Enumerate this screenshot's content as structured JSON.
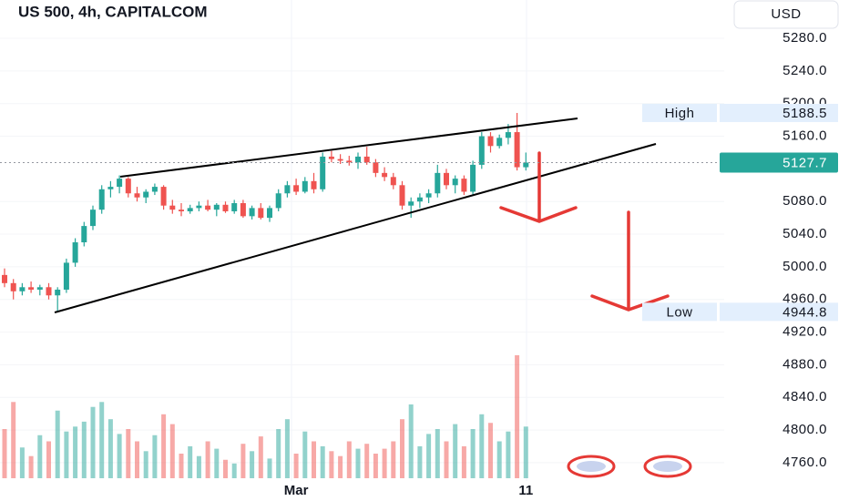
{
  "chart_data": {
    "type": "candlestick",
    "title": "US 500, 4h, CAPITALCOM",
    "currency": "USD",
    "up_color": "#26a69a",
    "down_color": "#ef5350",
    "ylim": [
      4737.6,
      5326.9
    ],
    "yticks": [
      {
        "value": 5280,
        "label": "5280.0"
      },
      {
        "value": 5240,
        "label": "5240.0"
      },
      {
        "value": 5200,
        "label": "5200.0"
      },
      {
        "value": 5160,
        "label": "5160.0"
      },
      {
        "value": 5080,
        "label": "5080.0"
      },
      {
        "value": 5040,
        "label": "5040.0"
      },
      {
        "value": 5000,
        "label": "5000.0"
      },
      {
        "value": 4960,
        "label": "4960.0"
      },
      {
        "value": 4920,
        "label": "4920.0"
      },
      {
        "value": 4880,
        "label": "4880.0"
      },
      {
        "value": 4840,
        "label": "4840.0"
      },
      {
        "value": 4800,
        "label": "4800.0"
      },
      {
        "value": 4760,
        "label": "4760.0"
      }
    ],
    "grid": true,
    "high": {
      "label": "High",
      "value": 5188.5
    },
    "low": {
      "label": "Low",
      "value": 4944.8
    },
    "last_price": 5127.7,
    "categories": [
      null,
      null,
      null,
      null,
      null,
      null,
      null,
      null,
      null,
      null,
      null,
      null,
      null,
      null,
      null,
      null,
      null,
      null,
      null,
      null,
      null,
      null,
      null,
      null,
      null,
      null,
      null,
      null,
      null,
      null,
      null,
      null,
      null,
      "Mar",
      null,
      null,
      null,
      null,
      null,
      null,
      null,
      null,
      null,
      null,
      null,
      null,
      null,
      null,
      null,
      null,
      null,
      null,
      null,
      null,
      null,
      null,
      null,
      null,
      null,
      "11"
    ],
    "ohlc": [
      [
        4990,
        4998,
        4975,
        4980
      ],
      [
        4980,
        4985,
        4960,
        4970
      ],
      [
        4970,
        4980,
        4965,
        4975
      ],
      [
        4975,
        4982,
        4968,
        4972
      ],
      [
        4972,
        4978,
        4965,
        4975
      ],
      [
        4975,
        4980,
        4960,
        4965
      ],
      [
        4965,
        4975,
        4944.8,
        4972
      ],
      [
        4972,
        5010,
        4968,
        5005
      ],
      [
        5005,
        5035,
        5000,
        5030
      ],
      [
        5030,
        5055,
        5025,
        5050
      ],
      [
        5050,
        5075,
        5045,
        5070
      ],
      [
        5070,
        5100,
        5065,
        5095
      ],
      [
        5095,
        5105,
        5085,
        5098
      ],
      [
        5098,
        5112,
        5090,
        5108
      ],
      [
        5108,
        5110,
        5085,
        5090
      ],
      [
        5090,
        5098,
        5080,
        5085
      ],
      [
        5085,
        5095,
        5078,
        5092
      ],
      [
        5092,
        5102,
        5088,
        5098
      ],
      [
        5098,
        5100,
        5070,
        5075
      ],
      [
        5075,
        5082,
        5065,
        5070
      ],
      [
        5070,
        5078,
        5062,
        5068
      ],
      [
        5068,
        5076,
        5065,
        5072
      ],
      [
        5072,
        5080,
        5068,
        5075
      ],
      [
        5075,
        5082,
        5068,
        5070
      ],
      [
        5070,
        5078,
        5062,
        5076
      ],
      [
        5076,
        5080,
        5066,
        5068
      ],
      [
        5068,
        5082,
        5065,
        5078
      ],
      [
        5078,
        5082,
        5060,
        5062
      ],
      [
        5062,
        5075,
        5058,
        5072
      ],
      [
        5072,
        5078,
        5058,
        5060
      ],
      [
        5060,
        5075,
        5055,
        5072
      ],
      [
        5072,
        5095,
        5068,
        5090
      ],
      [
        5090,
        5105,
        5085,
        5100
      ],
      [
        5100,
        5108,
        5088,
        5092
      ],
      [
        5092,
        5110,
        5090,
        5105
      ],
      [
        5105,
        5115,
        5090,
        5095
      ],
      [
        5095,
        5140,
        5092,
        5135
      ],
      [
        5135,
        5142,
        5128,
        5132
      ],
      [
        5132,
        5138,
        5126,
        5130
      ],
      [
        5130,
        5136,
        5124,
        5128
      ],
      [
        5128,
        5140,
        5120,
        5135
      ],
      [
        5135,
        5147,
        5125,
        5128
      ],
      [
        5128,
        5132,
        5110,
        5115
      ],
      [
        5115,
        5122,
        5105,
        5110
      ],
      [
        5110,
        5115,
        5095,
        5100
      ],
      [
        5100,
        5105,
        5070,
        5075
      ],
      [
        5075,
        5085,
        5060,
        5080
      ],
      [
        5080,
        5090,
        5072,
        5085
      ],
      [
        5085,
        5095,
        5078,
        5090
      ],
      [
        5090,
        5125,
        5085,
        5115
      ],
      [
        5115,
        5120,
        5095,
        5100
      ],
      [
        5100,
        5112,
        5090,
        5108
      ],
      [
        5108,
        5112,
        5088,
        5092
      ],
      [
        5092,
        5130,
        5088,
        5125
      ],
      [
        5125,
        5165,
        5120,
        5160
      ],
      [
        5160,
        5165,
        5140,
        5148
      ],
      [
        5148,
        5162,
        5145,
        5158
      ],
      [
        5158,
        5175,
        5150,
        5165
      ],
      [
        5165,
        5188.5,
        5118,
        5122
      ],
      [
        5122,
        5140,
        5118,
        5127.7
      ]
    ],
    "volume": [
      40,
      62,
      25,
      18,
      35,
      30,
      55,
      38,
      42,
      46,
      58,
      62,
      48,
      36,
      40,
      30,
      22,
      35,
      52,
      44,
      20,
      26,
      18,
      30,
      24,
      15,
      12,
      28,
      22,
      34,
      16,
      40,
      48,
      20,
      38,
      30,
      26,
      22,
      18,
      30,
      24,
      28,
      20,
      24,
      30,
      48,
      60,
      26,
      36,
      40,
      30,
      44,
      26,
      40,
      52,
      45,
      30,
      38,
      100,
      42
    ]
  }
}
